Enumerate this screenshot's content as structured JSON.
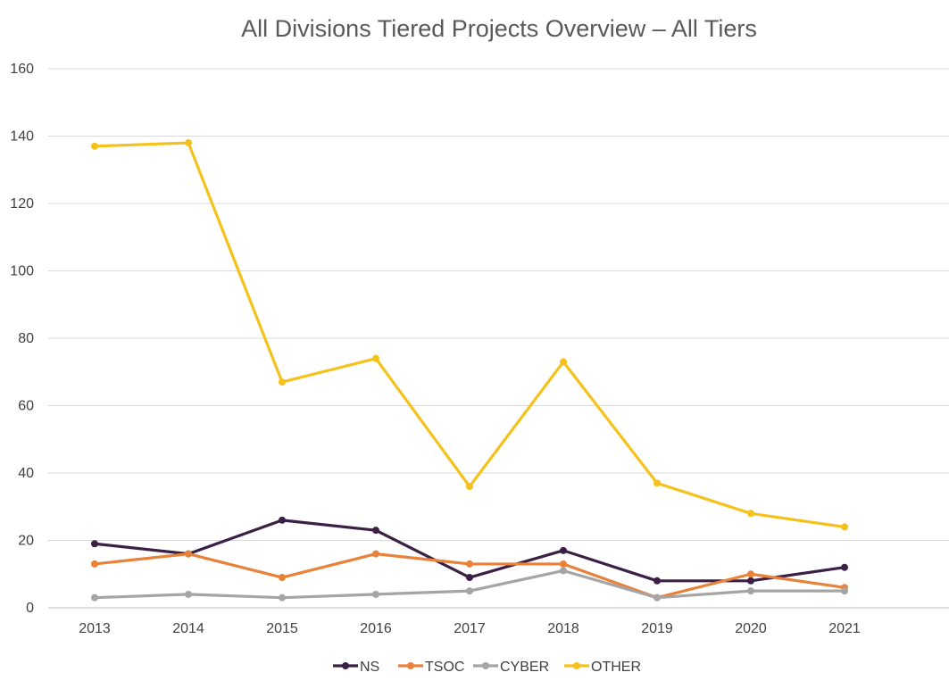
{
  "chart_data": {
    "type": "line",
    "title": "All Divisions Tiered Projects Overview – All Tiers",
    "xlabel": "",
    "ylabel": "",
    "categories": [
      "2013",
      "2014",
      "2015",
      "2016",
      "2017",
      "2018",
      "2019",
      "2020",
      "2021"
    ],
    "ylim": [
      0,
      160
    ],
    "yticks": [
      0,
      20,
      40,
      60,
      80,
      100,
      120,
      140,
      160
    ],
    "grid": true,
    "legend_position": "bottom",
    "series": [
      {
        "name": "NS",
        "color": "#3b1f45",
        "values": [
          19,
          16,
          26,
          23,
          9,
          17,
          8,
          8,
          12
        ]
      },
      {
        "name": "TSOC",
        "color": "#e8823a",
        "values": [
          13,
          16,
          9,
          16,
          13,
          13,
          3,
          10,
          6
        ]
      },
      {
        "name": "CYBER",
        "color": "#a5a5a5",
        "values": [
          3,
          4,
          3,
          4,
          5,
          11,
          3,
          5,
          5
        ]
      },
      {
        "name": "OTHER",
        "color": "#f5c21b",
        "values": [
          137,
          138,
          67,
          74,
          36,
          73,
          37,
          28,
          24
        ]
      }
    ]
  }
}
